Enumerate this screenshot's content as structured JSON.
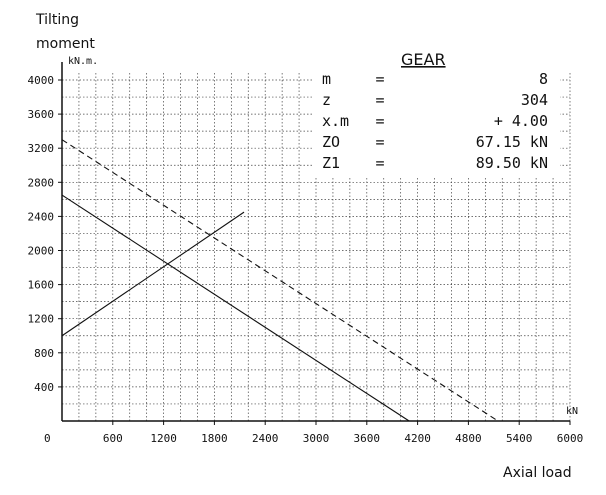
{
  "chart_data": {
    "type": "line",
    "ylabel_line1": "Tilting",
    "ylabel_line2": "moment",
    "ylabel_unit": "kN.m.",
    "xlabel": "Axial load",
    "xlabel_unit": "kN",
    "origin_label": "0",
    "xlim": [
      0,
      6000
    ],
    "ylim": [
      0,
      4000
    ],
    "x_ticks": [
      "600",
      "1200",
      "1800",
      "2400",
      "3000",
      "3600",
      "4200",
      "4800",
      "5400",
      "6000"
    ],
    "y_ticks": [
      "400",
      "800",
      "1200",
      "1600",
      "2000",
      "2400",
      "2800",
      "3200",
      "3600",
      "4000"
    ],
    "grid": true,
    "series": [
      {
        "style": "dashed",
        "color": "#111111",
        "points": [
          [
            0,
            3300
          ],
          [
            5150,
            0
          ]
        ]
      },
      {
        "style": "solid",
        "color": "#111111",
        "points": [
          [
            0,
            2650
          ],
          [
            4100,
            0
          ]
        ]
      },
      {
        "style": "solid",
        "color": "#111111",
        "points": [
          [
            0,
            1000
          ],
          [
            2150,
            2450
          ]
        ]
      }
    ],
    "gear_table": {
      "title": "GEAR",
      "rows": [
        {
          "name": "m",
          "eq": "=",
          "value": "8"
        },
        {
          "name": "z",
          "eq": "=",
          "value": "304"
        },
        {
          "name": "x.m",
          "eq": "=",
          "value": "+    4.00"
        },
        {
          "name": "ZO",
          "eq": "=",
          "value": "67.15  kN"
        },
        {
          "name": "Z1",
          "eq": "=",
          "value": "89.50  kN"
        }
      ]
    }
  }
}
